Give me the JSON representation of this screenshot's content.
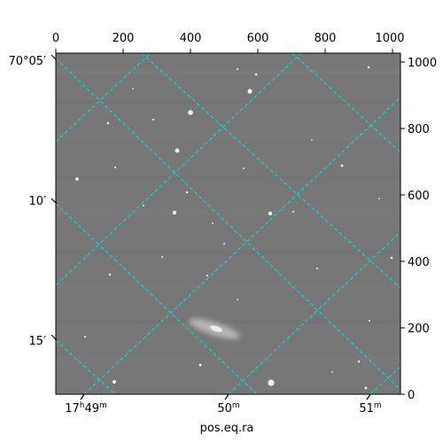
{
  "figure": {
    "xlabel": "pos.eq.ra",
    "top_ticks": [
      "0",
      "200",
      "400",
      "600",
      "800",
      "1000"
    ],
    "right_ticks": [
      "1000",
      "800",
      "600",
      "400",
      "200",
      "0"
    ],
    "left_ticks": [
      {
        "main": "70°05′",
        "sup": ""
      },
      {
        "main": "10′",
        "sup": ""
      },
      {
        "main": "15′",
        "sup": ""
      }
    ],
    "bottom_ticks": [
      {
        "a": "17",
        "h": "h",
        "b": "49",
        "m": "m"
      },
      {
        "a": "",
        "h": "",
        "b": "50",
        "m": "m"
      },
      {
        "a": "",
        "h": "",
        "b": "51",
        "m": "m"
      }
    ],
    "grid_color": "#00e0e0",
    "image_background": "#777777"
  }
}
